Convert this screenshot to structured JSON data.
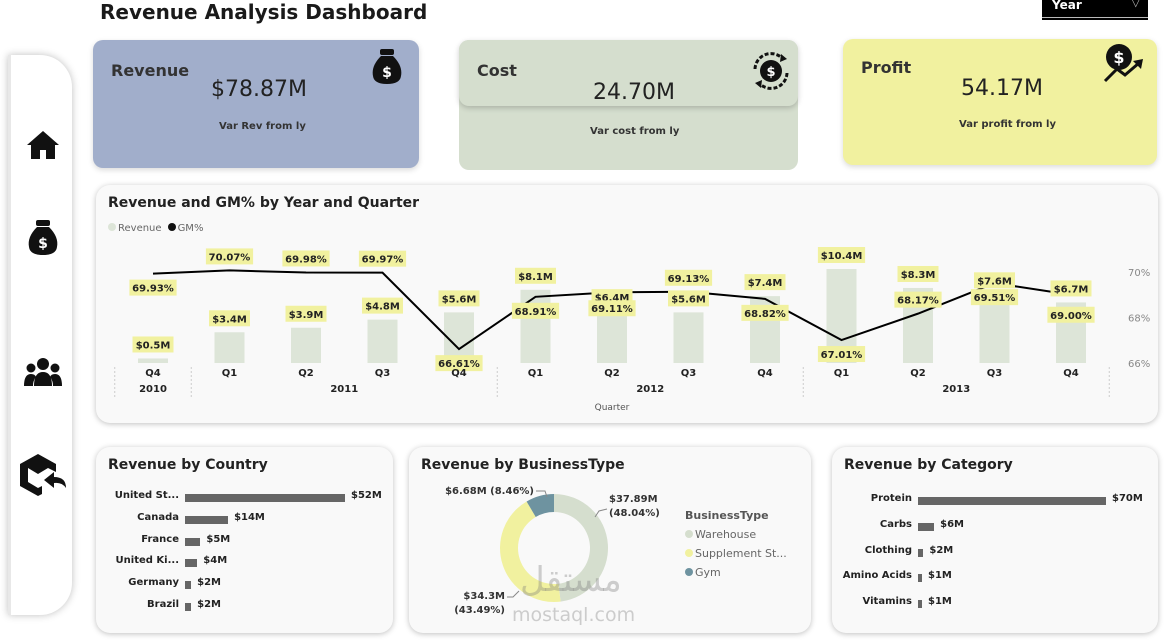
{
  "header": {
    "title": "Revenue Analysis Dashboard",
    "year_slicer": "Year"
  },
  "sidebar": {
    "items": [
      {
        "name": "home",
        "icon": "home-icon"
      },
      {
        "name": "revenue",
        "icon": "money-bag-icon"
      },
      {
        "name": "customers",
        "icon": "users-icon"
      },
      {
        "name": "back",
        "icon": "back-arrow-icon"
      }
    ]
  },
  "kpis": {
    "revenue": {
      "label": "Revenue",
      "value": "$78.87M",
      "sub": "Var Rev from ly",
      "color": "#a1aecb",
      "icon": "money-bag-icon"
    },
    "cost": {
      "label": "Cost",
      "value": "24.70M",
      "sub": "Var cost from ly",
      "color": "#d5dece",
      "icon": "dollar-cycle-icon"
    },
    "profit": {
      "label": "Profit",
      "value": "54.17M",
      "sub": "Var profit from ly",
      "color": "#f1f19f",
      "icon": "profit-growth-icon"
    }
  },
  "combo_chart": {
    "title": "Revenue and GM% by Year and Quarter",
    "legend": [
      "Revenue",
      "GM%"
    ],
    "xaxis_title": "Quarter",
    "y2_ticks": [
      "70%",
      "68%",
      "66%"
    ]
  },
  "country_chart": {
    "title": "Revenue by Country"
  },
  "business_chart": {
    "title": "Revenue by BusinessType",
    "legend_title": "BusinessType",
    "legend": [
      "Warehouse",
      "Supplement St...",
      "Gym"
    ],
    "labels": {
      "gym": "$6.68M (8.46%)",
      "warehouse_val": "$37.89M",
      "warehouse_pct": "(48.04%)",
      "supp_val": "$34.3M",
      "supp_pct": "(43.49%)"
    }
  },
  "category_chart": {
    "title": "Revenue by Category"
  },
  "watermark": {
    "text_ar": "مستقل",
    "text_en": "mostaql.com"
  },
  "chart_data": [
    {
      "type": "bar",
      "title": "Revenue and GM% by Year and Quarter",
      "xlabel": "Quarter",
      "categories": [
        "Q4",
        "Q1",
        "Q2",
        "Q3",
        "Q4",
        "Q1",
        "Q2",
        "Q3",
        "Q4",
        "Q1",
        "Q2",
        "Q3",
        "Q4"
      ],
      "years": [
        {
          "label": "2010",
          "span": [
            0,
            0
          ]
        },
        {
          "label": "2011",
          "span": [
            1,
            4
          ]
        },
        {
          "label": "2012",
          "span": [
            5,
            8
          ]
        },
        {
          "label": "2013",
          "span": [
            9,
            12
          ]
        }
      ],
      "series": [
        {
          "name": "Revenue",
          "values": [
            0.5,
            3.4,
            3.9,
            4.8,
            5.6,
            8.1,
            6.4,
            5.6,
            7.4,
            10.4,
            8.3,
            7.6,
            6.7
          ],
          "labels": [
            "$0.5M",
            "$3.4M",
            "$3.9M",
            "$4.8M",
            "$5.6M",
            "$8.1M",
            "$6.4M",
            "$5.6M",
            "$7.4M",
            "$10.4M",
            "$8.3M",
            "$7.6M",
            "$6.7M"
          ]
        },
        {
          "name": "GM%",
          "values": [
            69.93,
            70.07,
            69.98,
            69.97,
            66.61,
            68.91,
            69.11,
            69.13,
            68.82,
            67.01,
            68.17,
            69.51,
            69.0
          ],
          "labels": [
            "69.93%",
            "70.07%",
            "69.98%",
            "69.97%",
            "66.61%",
            "68.91%",
            "69.11%",
            "69.13%",
            "68.82%",
            "67.01%",
            "68.17%",
            "69.51%",
            "69.00%"
          ]
        }
      ],
      "y2lim": [
        66,
        70
      ],
      "colors": {
        "bar": "#dde5d8",
        "line": "#000000",
        "label_bg": "#f1f19f"
      }
    },
    {
      "type": "bar",
      "orientation": "horizontal",
      "title": "Revenue by Country",
      "categories": [
        "United St...",
        "Canada",
        "France",
        "United Ki...",
        "Germany",
        "Brazil"
      ],
      "values": [
        52,
        14,
        5,
        4,
        2,
        2
      ],
      "labels": [
        "$52M",
        "$14M",
        "$5M",
        "$4M",
        "$2M",
        "$2M"
      ]
    },
    {
      "type": "pie",
      "title": "Revenue by BusinessType",
      "categories": [
        "Warehouse",
        "Supplement St...",
        "Gym"
      ],
      "values": [
        37.89,
        34.3,
        6.68
      ],
      "percents": [
        48.04,
        43.49,
        8.46
      ],
      "colors": [
        "#d5dece",
        "#f1f19f",
        "#6e93a0"
      ]
    },
    {
      "type": "bar",
      "orientation": "horizontal",
      "title": "Revenue by Category",
      "categories": [
        "Protein",
        "Carbs",
        "Clothing",
        "Amino Acids",
        "Vitamins"
      ],
      "values": [
        70,
        6,
        2,
        1,
        1
      ],
      "labels": [
        "$70M",
        "$6M",
        "$2M",
        "$1M",
        "$1M"
      ]
    }
  ]
}
